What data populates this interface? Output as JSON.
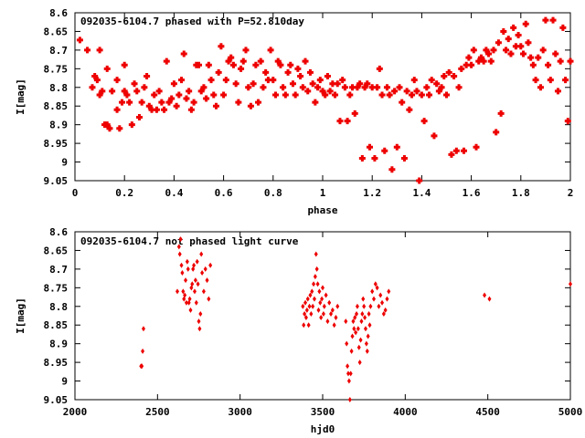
{
  "chart_data": [
    {
      "type": "scatter",
      "title": "092035-6104.7 phased with P=52.810day",
      "xlabel": "phase",
      "ylabel": "I[mag]",
      "xlim": [
        0,
        2
      ],
      "ylim": [
        8.6,
        9.05
      ],
      "y_inverted": true,
      "xticks": [
        "0",
        "0.2",
        "0.4",
        "0.6",
        "0.8",
        "1",
        "1.2",
        "1.4",
        "1.6",
        "1.8",
        "2"
      ],
      "yticks": [
        "8.6",
        "8.65",
        "8.7",
        "8.75",
        "8.8",
        "8.85",
        "8.9",
        "8.95",
        "9",
        "9.05"
      ],
      "marker_color": "#ee0000",
      "points": [
        [
          0.02,
          8.673
        ],
        [
          0.05,
          8.7
        ],
        [
          0.07,
          8.8
        ],
        [
          0.08,
          8.77
        ],
        [
          0.09,
          8.78
        ],
        [
          0.1,
          8.82
        ],
        [
          0.1,
          8.7
        ],
        [
          0.11,
          8.81
        ],
        [
          0.12,
          8.9
        ],
        [
          0.13,
          8.9
        ],
        [
          0.13,
          8.75
        ],
        [
          0.14,
          8.91
        ],
        [
          0.15,
          8.81
        ],
        [
          0.17,
          8.78
        ],
        [
          0.17,
          8.86
        ],
        [
          0.18,
          8.91
        ],
        [
          0.19,
          8.84
        ],
        [
          0.2,
          8.81
        ],
        [
          0.2,
          8.74
        ],
        [
          0.21,
          8.82
        ],
        [
          0.22,
          8.84
        ],
        [
          0.23,
          8.9
        ],
        [
          0.24,
          8.79
        ],
        [
          0.25,
          8.81
        ],
        [
          0.26,
          8.88
        ],
        [
          0.27,
          8.84
        ],
        [
          0.28,
          8.8
        ],
        [
          0.29,
          8.77
        ],
        [
          0.3,
          8.85
        ],
        [
          0.31,
          8.86
        ],
        [
          0.32,
          8.82
        ],
        [
          0.33,
          8.86
        ],
        [
          0.34,
          8.81
        ],
        [
          0.35,
          8.84
        ],
        [
          0.36,
          8.86
        ],
        [
          0.37,
          8.73
        ],
        [
          0.38,
          8.84
        ],
        [
          0.39,
          8.83
        ],
        [
          0.4,
          8.79
        ],
        [
          0.41,
          8.85
        ],
        [
          0.42,
          8.82
        ],
        [
          0.43,
          8.78
        ],
        [
          0.44,
          8.71
        ],
        [
          0.45,
          8.83
        ],
        [
          0.46,
          8.81
        ],
        [
          0.47,
          8.86
        ],
        [
          0.48,
          8.84
        ],
        [
          0.49,
          8.74
        ],
        [
          0.5,
          8.74
        ],
        [
          0.51,
          8.81
        ],
        [
          0.52,
          8.8
        ],
        [
          0.53,
          8.83
        ],
        [
          0.54,
          8.74
        ],
        [
          0.55,
          8.78
        ],
        [
          0.56,
          8.82
        ],
        [
          0.57,
          8.85
        ],
        [
          0.58,
          8.76
        ],
        [
          0.59,
          8.69
        ],
        [
          0.6,
          8.82
        ],
        [
          0.61,
          8.78
        ],
        [
          0.62,
          8.73
        ],
        [
          0.63,
          8.72
        ],
        [
          0.64,
          8.74
        ],
        [
          0.65,
          8.79
        ],
        [
          0.66,
          8.84
        ],
        [
          0.67,
          8.75
        ],
        [
          0.68,
          8.73
        ],
        [
          0.69,
          8.7
        ],
        [
          0.7,
          8.8
        ],
        [
          0.71,
          8.85
        ],
        [
          0.72,
          8.79
        ],
        [
          0.73,
          8.74
        ],
        [
          0.74,
          8.84
        ],
        [
          0.75,
          8.73
        ],
        [
          0.76,
          8.8
        ],
        [
          0.77,
          8.76
        ],
        [
          0.78,
          8.78
        ],
        [
          0.79,
          8.7
        ],
        [
          0.8,
          8.78
        ],
        [
          0.81,
          8.82
        ],
        [
          0.82,
          8.73
        ],
        [
          0.83,
          8.74
        ],
        [
          0.84,
          8.8
        ],
        [
          0.85,
          8.82
        ],
        [
          0.86,
          8.76
        ],
        [
          0.87,
          8.74
        ],
        [
          0.88,
          8.79
        ],
        [
          0.89,
          8.82
        ],
        [
          0.9,
          8.75
        ],
        [
          0.91,
          8.77
        ],
        [
          0.92,
          8.8
        ],
        [
          0.93,
          8.73
        ],
        [
          0.94,
          8.81
        ],
        [
          0.95,
          8.76
        ],
        [
          0.96,
          8.79
        ],
        [
          0.97,
          8.84
        ],
        [
          0.98,
          8.8
        ],
        [
          0.99,
          8.78
        ],
        [
          1.0,
          8.81
        ],
        [
          1.01,
          8.82
        ],
        [
          1.02,
          8.77
        ],
        [
          1.03,
          8.81
        ],
        [
          1.04,
          8.79
        ],
        [
          1.05,
          8.82
        ],
        [
          1.06,
          8.79
        ],
        [
          1.07,
          8.89
        ],
        [
          1.08,
          8.78
        ],
        [
          1.09,
          8.8
        ],
        [
          1.1,
          8.89
        ],
        [
          1.11,
          8.82
        ],
        [
          1.12,
          8.8
        ],
        [
          1.13,
          8.87
        ],
        [
          1.14,
          8.8
        ],
        [
          1.15,
          8.79
        ],
        [
          1.16,
          8.99
        ],
        [
          1.17,
          8.8
        ],
        [
          1.18,
          8.79
        ],
        [
          1.19,
          8.96
        ],
        [
          1.2,
          8.8
        ],
        [
          1.21,
          8.99
        ],
        [
          1.22,
          8.8
        ],
        [
          1.23,
          8.75
        ],
        [
          1.24,
          8.82
        ],
        [
          1.25,
          8.97
        ],
        [
          1.26,
          8.8
        ],
        [
          1.27,
          8.82
        ],
        [
          1.28,
          9.02
        ],
        [
          1.29,
          8.81
        ],
        [
          1.3,
          8.96
        ],
        [
          1.31,
          8.8
        ],
        [
          1.32,
          8.84
        ],
        [
          1.33,
          8.99
        ],
        [
          1.34,
          8.81
        ],
        [
          1.35,
          8.86
        ],
        [
          1.36,
          8.82
        ],
        [
          1.37,
          8.78
        ],
        [
          1.38,
          8.81
        ],
        [
          1.39,
          9.05
        ],
        [
          1.4,
          8.82
        ],
        [
          1.41,
          8.89
        ],
        [
          1.42,
          8.8
        ],
        [
          1.43,
          8.82
        ],
        [
          1.44,
          8.78
        ],
        [
          1.45,
          8.93
        ],
        [
          1.46,
          8.79
        ],
        [
          1.47,
          8.81
        ],
        [
          1.48,
          8.8
        ],
        [
          1.49,
          8.77
        ],
        [
          1.5,
          8.82
        ],
        [
          1.51,
          8.76
        ],
        [
          1.52,
          8.98
        ],
        [
          1.53,
          8.77
        ],
        [
          1.54,
          8.97
        ],
        [
          1.55,
          8.8
        ],
        [
          1.56,
          8.75
        ],
        [
          1.57,
          8.97
        ],
        [
          1.58,
          8.74
        ],
        [
          1.59,
          8.72
        ],
        [
          1.6,
          8.74
        ],
        [
          1.61,
          8.7
        ],
        [
          1.62,
          8.96
        ],
        [
          1.63,
          8.73
        ],
        [
          1.64,
          8.72
        ],
        [
          1.65,
          8.73
        ],
        [
          1.66,
          8.7
        ],
        [
          1.67,
          8.71
        ],
        [
          1.68,
          8.73
        ],
        [
          1.69,
          8.7
        ],
        [
          1.7,
          8.92
        ],
        [
          1.71,
          8.68
        ],
        [
          1.72,
          8.87
        ],
        [
          1.73,
          8.65
        ],
        [
          1.74,
          8.7
        ],
        [
          1.75,
          8.67
        ],
        [
          1.76,
          8.71
        ],
        [
          1.77,
          8.64
        ],
        [
          1.78,
          8.69
        ],
        [
          1.79,
          8.66
        ],
        [
          1.8,
          8.69
        ],
        [
          1.81,
          8.71
        ],
        [
          1.82,
          8.63
        ],
        [
          1.83,
          8.68
        ],
        [
          1.84,
          8.72
        ],
        [
          1.85,
          8.74
        ],
        [
          1.86,
          8.78
        ],
        [
          1.87,
          8.72
        ],
        [
          1.88,
          8.8
        ],
        [
          1.89,
          8.7
        ],
        [
          1.9,
          8.62
        ],
        [
          1.91,
          8.74
        ],
        [
          1.92,
          8.78
        ],
        [
          1.93,
          8.62
        ],
        [
          1.94,
          8.71
        ],
        [
          1.95,
          8.81
        ],
        [
          1.96,
          8.73
        ],
        [
          1.97,
          8.64
        ],
        [
          1.98,
          8.78
        ],
        [
          1.99,
          8.89
        ],
        [
          2.0,
          8.73
        ]
      ]
    },
    {
      "type": "scatter",
      "title": "092035-6104.7 not phased light curve",
      "xlabel": "hjd0",
      "ylabel": "I[mag]",
      "xlim": [
        2000,
        5000
      ],
      "ylim": [
        8.6,
        9.05
      ],
      "y_inverted": true,
      "xticks": [
        "2000",
        "2500",
        "3000",
        "3500",
        "4000",
        "4500",
        "5000"
      ],
      "yticks": [
        "8.6",
        "8.65",
        "8.7",
        "8.75",
        "8.8",
        "8.85",
        "8.9",
        "8.95",
        "9",
        "9.05"
      ],
      "marker_color": "#ee0000",
      "points": [
        [
          2400,
          8.96
        ],
        [
          2405,
          8.96
        ],
        [
          2410,
          8.92
        ],
        [
          2415,
          8.86
        ],
        [
          2620,
          8.76
        ],
        [
          2630,
          8.64
        ],
        [
          2635,
          8.66
        ],
        [
          2640,
          8.62
        ],
        [
          2645,
          8.69
        ],
        [
          2650,
          8.71
        ],
        [
          2655,
          8.76
        ],
        [
          2660,
          8.78
        ],
        [
          2665,
          8.77
        ],
        [
          2670,
          8.73
        ],
        [
          2675,
          8.79
        ],
        [
          2680,
          8.68
        ],
        [
          2685,
          8.7
        ],
        [
          2690,
          8.79
        ],
        [
          2695,
          8.78
        ],
        [
          2700,
          8.81
        ],
        [
          2705,
          8.75
        ],
        [
          2710,
          8.74
        ],
        [
          2715,
          8.7
        ],
        [
          2720,
          8.69
        ],
        [
          2725,
          8.76
        ],
        [
          2730,
          8.73
        ],
        [
          2735,
          8.79
        ],
        [
          2740,
          8.68
        ],
        [
          2745,
          8.74
        ],
        [
          2750,
          8.84
        ],
        [
          2755,
          8.86
        ],
        [
          2760,
          8.82
        ],
        [
          2765,
          8.66
        ],
        [
          2770,
          8.71
        ],
        [
          2780,
          8.76
        ],
        [
          2790,
          8.7
        ],
        [
          2800,
          8.73
        ],
        [
          2810,
          8.78
        ],
        [
          2820,
          8.69
        ],
        [
          3380,
          8.8
        ],
        [
          3385,
          8.85
        ],
        [
          3390,
          8.82
        ],
        [
          3395,
          8.79
        ],
        [
          3400,
          8.83
        ],
        [
          3405,
          8.81
        ],
        [
          3410,
          8.78
        ],
        [
          3415,
          8.85
        ],
        [
          3420,
          8.8
        ],
        [
          3425,
          8.77
        ],
        [
          3430,
          8.82
        ],
        [
          3435,
          8.76
        ],
        [
          3440,
          8.8
        ],
        [
          3445,
          8.74
        ],
        [
          3450,
          8.78
        ],
        [
          3455,
          8.72
        ],
        [
          3460,
          8.66
        ],
        [
          3465,
          8.7
        ],
        [
          3470,
          8.74
        ],
        [
          3475,
          8.81
        ],
        [
          3480,
          8.76
        ],
        [
          3485,
          8.79
        ],
        [
          3490,
          8.83
        ],
        [
          3495,
          8.78
        ],
        [
          3500,
          8.75
        ],
        [
          3505,
          8.82
        ],
        [
          3510,
          8.8
        ],
        [
          3520,
          8.77
        ],
        [
          3530,
          8.84
        ],
        [
          3540,
          8.79
        ],
        [
          3550,
          8.82
        ],
        [
          3560,
          8.81
        ],
        [
          3570,
          8.85
        ],
        [
          3580,
          8.83
        ],
        [
          3590,
          8.8
        ],
        [
          3640,
          8.84
        ],
        [
          3645,
          8.9
        ],
        [
          3650,
          8.96
        ],
        [
          3655,
          8.98
        ],
        [
          3660,
          9.0
        ],
        [
          3665,
          9.05
        ],
        [
          3670,
          8.98
        ],
        [
          3675,
          8.92
        ],
        [
          3680,
          8.88
        ],
        [
          3685,
          8.84
        ],
        [
          3690,
          8.86
        ],
        [
          3695,
          8.83
        ],
        [
          3700,
          8.87
        ],
        [
          3705,
          8.82
        ],
        [
          3710,
          8.8
        ],
        [
          3715,
          8.86
        ],
        [
          3720,
          8.91
        ],
        [
          3725,
          8.95
        ],
        [
          3730,
          8.89
        ],
        [
          3735,
          8.84
        ],
        [
          3740,
          8.82
        ],
        [
          3745,
          8.78
        ],
        [
          3750,
          8.8
        ],
        [
          3755,
          8.83
        ],
        [
          3760,
          8.86
        ],
        [
          3765,
          8.9
        ],
        [
          3770,
          8.92
        ],
        [
          3775,
          8.88
        ],
        [
          3780,
          8.82
        ],
        [
          3785,
          8.85
        ],
        [
          3790,
          8.8
        ],
        [
          3800,
          8.76
        ],
        [
          3810,
          8.78
        ],
        [
          3820,
          8.74
        ],
        [
          3830,
          8.75
        ],
        [
          3840,
          8.8
        ],
        [
          3850,
          8.77
        ],
        [
          3860,
          8.79
        ],
        [
          3870,
          8.82
        ],
        [
          3880,
          8.81
        ],
        [
          3890,
          8.78
        ],
        [
          3900,
          8.76
        ],
        [
          4480,
          8.77
        ],
        [
          4510,
          8.78
        ],
        [
          5000,
          8.74
        ]
      ]
    }
  ]
}
